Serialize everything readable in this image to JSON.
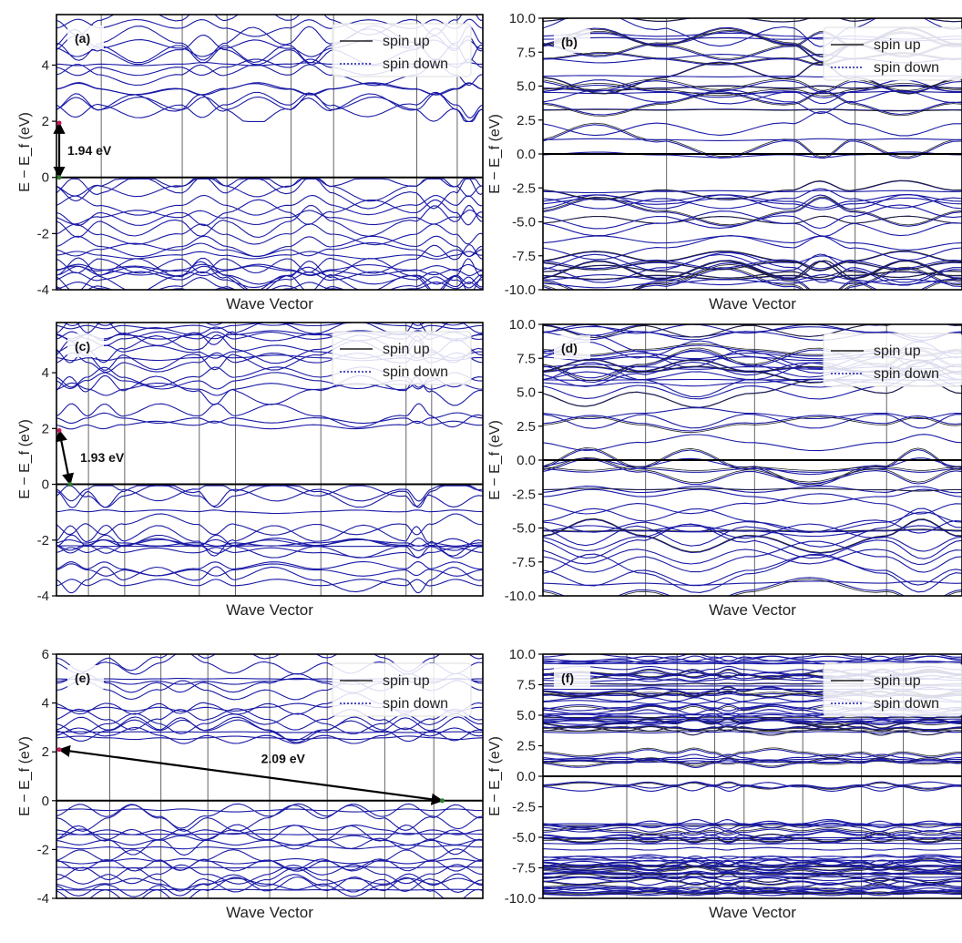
{
  "figure": {
    "background": "#ffffff",
    "band_color": "#1a1aa6",
    "up_color": "#222222"
  },
  "chart_data": [
    {
      "id": "a",
      "type": "line",
      "panel_label": "(a)",
      "xlabel": "Wave Vector",
      "ylabel": "E − E_f (eV)",
      "ylim": [
        -4,
        5.8
      ],
      "yticks": [
        "-4",
        "-2",
        "0",
        "2",
        "4"
      ],
      "ytick_values": [
        -4,
        -2,
        0,
        2,
        4
      ],
      "legend": [
        "spin up",
        "spin down"
      ],
      "legend_position": "top-right",
      "kpaths": [
        0.105,
        0.295,
        0.4,
        0.55,
        0.65,
        0.845,
        0.94
      ],
      "cbm": 1.94,
      "vbm": 0.0,
      "band_gap": 1.94,
      "gap_label": "1.94 eV",
      "gap_type": "direct",
      "seed": 11
    },
    {
      "id": "b",
      "type": "line",
      "panel_label": "(b)",
      "xlabel": "Wave Vector",
      "ylabel": "E − E_f (eV)",
      "ylim": [
        -10,
        10
      ],
      "yticks": [
        "-10.0",
        "-7.5",
        "-5.0",
        "-2.5",
        "0.0",
        "2.5",
        "5.0",
        "7.5",
        "10.0"
      ],
      "ytick_values": [
        -10,
        -7.5,
        -5,
        -2.5,
        0,
        2.5,
        5,
        7.5,
        10
      ],
      "legend": [
        "spin up",
        "spin down"
      ],
      "legend_position": "top-right",
      "kpaths": [
        0.295,
        0.6,
        0.745
      ],
      "metallic": true,
      "seed": 23
    },
    {
      "id": "c",
      "type": "line",
      "panel_label": "(c)",
      "xlabel": "Wave Vector",
      "ylabel": "E − E_f (eV)",
      "ylim": [
        -4,
        5.8
      ],
      "yticks": [
        "-4",
        "-2",
        "0",
        "2",
        "4"
      ],
      "ytick_values": [
        -4,
        -2,
        0,
        2,
        4
      ],
      "legend": [
        "spin up",
        "spin down"
      ],
      "legend_position": "top-right",
      "kpaths": [
        0.075,
        0.16,
        0.335,
        0.42,
        0.62,
        0.82,
        0.88
      ],
      "cbm": 1.93,
      "vbm": 0.0,
      "band_gap": 1.93,
      "gap_label": "1.93 eV",
      "gap_type": "indirect",
      "seed": 37
    },
    {
      "id": "d",
      "type": "line",
      "panel_label": "(d)",
      "xlabel": "Wave Vector",
      "ylabel": "E − E_f (eV)",
      "ylim": [
        -10,
        10
      ],
      "yticks": [
        "-10.0",
        "-7.5",
        "-5.0",
        "-2.5",
        "0.0",
        "2.5",
        "5.0",
        "7.5",
        "10.0"
      ],
      "ytick_values": [
        -10,
        -7.5,
        -5,
        -2.5,
        0,
        2.5,
        5,
        7.5,
        10
      ],
      "legend": [
        "spin up",
        "spin down"
      ],
      "legend_position": "top-right",
      "kpaths": [
        0.245,
        0.505,
        0.82
      ],
      "metallic": true,
      "seed": 41
    },
    {
      "id": "e",
      "type": "line",
      "panel_label": "(e)",
      "xlabel": "Wave Vector",
      "ylabel": "E − E_f (eV)",
      "ylim": [
        -4,
        6
      ],
      "yticks": [
        "-4",
        "-2",
        "0",
        "2",
        "4",
        "6"
      ],
      "ytick_values": [
        -4,
        -2,
        0,
        2,
        4,
        6
      ],
      "legend": [
        "spin up",
        "spin down"
      ],
      "legend_position": "top-right",
      "kpaths": [
        0.125,
        0.245,
        0.355,
        0.5,
        0.635,
        0.77,
        0.885
      ],
      "cbm": 2.09,
      "vbm": 0.0,
      "band_gap": 2.09,
      "gap_label": "2.09 eV",
      "gap_type": "indirect",
      "seed": 53
    },
    {
      "id": "f",
      "type": "line",
      "panel_label": "(f)",
      "xlabel": "Wave Vector",
      "ylabel": "E − E_f (eV)",
      "ylim": [
        -10,
        10
      ],
      "yticks": [
        "-10.0",
        "-7.5",
        "-5.0",
        "-2.5",
        "0.0",
        "2.5",
        "5.0",
        "7.5",
        "10.0"
      ],
      "ytick_values": [
        -10,
        -7.5,
        -5,
        -2.5,
        0,
        2.5,
        5,
        7.5,
        10
      ],
      "legend": [
        "spin up",
        "spin down"
      ],
      "legend_position": "top-right",
      "kpaths": [
        0.2,
        0.32,
        0.41,
        0.48,
        0.62,
        0.76,
        0.86
      ],
      "metallic": true,
      "dense": true,
      "seed": 67
    }
  ]
}
